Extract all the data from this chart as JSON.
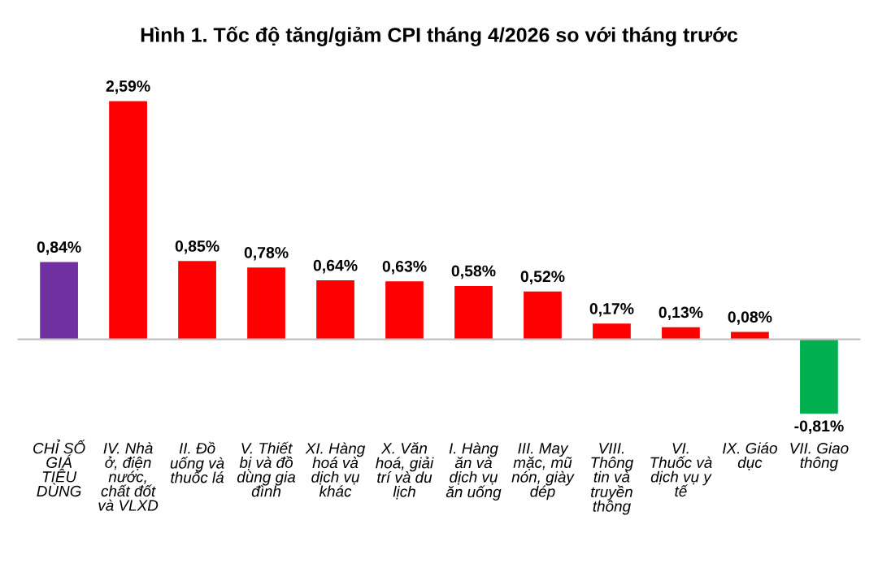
{
  "chart_data": {
    "type": "bar",
    "title": "Hình 1. Tốc độ tăng/giảm CPI tháng 4/2026 so với tháng trước",
    "categories": [
      "CHỈ SỐ\nGIÁ\nTIÊU\nDÙNG",
      "IV. Nhà\nở, điện\nnước,\nchất đốt\nvà VLXD",
      "II. Đồ\nuống và\nthuốc lá",
      "V. Thiết\nbị và đồ\ndùng gia\nđình",
      "XI. Hàng\nhoá và\ndịch vụ\nkhác",
      "X. Văn\nhoá, giải\ntrí và du\nlịch",
      "I. Hàng\năn và\ndịch vụ\năn uống",
      "III. May\nmặc, mũ\nnón, giày\ndép",
      "VIII.\nThông\ntin và\ntruyền\nthông",
      "VI.\nThuốc và\ndịch vụ y\ntế",
      "IX. Giáo\ndục",
      "VII. Giao\nthông"
    ],
    "values": [
      0.84,
      2.59,
      0.85,
      0.78,
      0.64,
      0.63,
      0.58,
      0.52,
      0.17,
      0.13,
      0.08,
      -0.81
    ],
    "value_labels": [
      "0,84%",
      "2,59%",
      "0,85%",
      "0,78%",
      "0,64%",
      "0,63%",
      "0,58%",
      "0,52%",
      "0,17%",
      "0,13%",
      "0,08%",
      "-0,81%"
    ],
    "colors": [
      "#7030a0",
      "#ff0000",
      "#ff0000",
      "#ff0000",
      "#ff0000",
      "#ff0000",
      "#ff0000",
      "#ff0000",
      "#ff0000",
      "#ff0000",
      "#ff0000",
      "#00b050"
    ],
    "legend": false
  }
}
